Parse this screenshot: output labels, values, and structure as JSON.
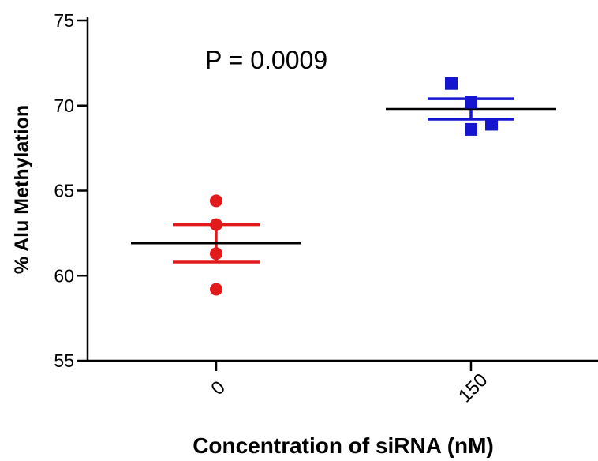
{
  "chart_data": {
    "type": "scatter",
    "ylabel": "% Alu Methylation",
    "xlabel": "Concentration of siRNA (nM)",
    "annotation": "P = 0.0009",
    "ylim": [
      55,
      75
    ],
    "yticks": [
      "55",
      "60",
      "65",
      "70",
      "75"
    ],
    "categories": [
      "0",
      "150"
    ],
    "grid": false,
    "series": [
      {
        "category": "0",
        "marker": "circle",
        "color": "#e31a1c",
        "values": [
          64.4,
          63.0,
          61.3,
          59.2
        ],
        "mean": 61.9,
        "sem_upper": 63.0,
        "sem_lower": 60.8
      },
      {
        "category": "150",
        "marker": "square",
        "color": "#1515d0",
        "values": [
          71.3,
          70.2,
          68.9,
          68.6
        ],
        "mean": 69.8,
        "sem_upper": 70.4,
        "sem_lower": 69.2
      }
    ]
  }
}
